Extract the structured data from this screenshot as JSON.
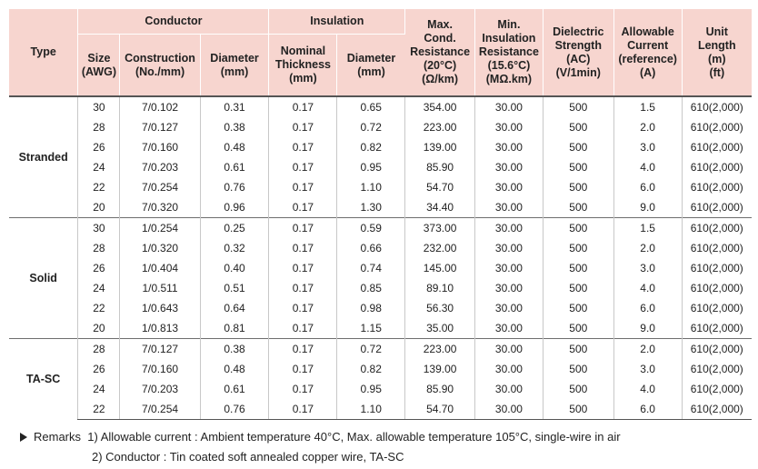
{
  "headers": {
    "type": "Type",
    "conductor": "Conductor",
    "insulation": "Insulation",
    "size": [
      "Size",
      "(AWG)"
    ],
    "construction": [
      "Construction",
      "(No./mm)"
    ],
    "cond_diameter": [
      "Diameter",
      "(mm)"
    ],
    "nominal_thickness": [
      "Nominal",
      "Thickness",
      "(mm)"
    ],
    "ins_diameter": [
      "Diameter",
      "(mm)"
    ],
    "max_resistance": [
      "Max.",
      "Cond.",
      "Resistance",
      "(20°C)",
      "(Ω/km)"
    ],
    "min_resistance": [
      "Min.",
      "Insulation",
      "Resistance",
      "(15.6°C)",
      "(MΩ.km)"
    ],
    "dielectric": [
      "Dielectric",
      "Strength",
      "(AC)",
      "(V/1min)"
    ],
    "allowable_current": [
      "Allowable",
      "Current",
      "(reference)",
      "(A)"
    ],
    "unit_length": [
      "Unit",
      "Length",
      "(m)",
      "(ft)"
    ]
  },
  "groups": [
    {
      "type": "Stranded",
      "rows": [
        [
          "30",
          "7/0.102",
          "0.31",
          "0.17",
          "0.65",
          "354.00",
          "30.00",
          "500",
          "1.5",
          "610(2,000)"
        ],
        [
          "28",
          "7/0.127",
          "0.38",
          "0.17",
          "0.72",
          "223.00",
          "30.00",
          "500",
          "2.0",
          "610(2,000)"
        ],
        [
          "26",
          "7/0.160",
          "0.48",
          "0.17",
          "0.82",
          "139.00",
          "30.00",
          "500",
          "3.0",
          "610(2,000)"
        ],
        [
          "24",
          "7/0.203",
          "0.61",
          "0.17",
          "0.95",
          "85.90",
          "30.00",
          "500",
          "4.0",
          "610(2,000)"
        ],
        [
          "22",
          "7/0.254",
          "0.76",
          "0.17",
          "1.10",
          "54.70",
          "30.00",
          "500",
          "6.0",
          "610(2,000)"
        ],
        [
          "20",
          "7/0.320",
          "0.96",
          "0.17",
          "1.30",
          "34.40",
          "30.00",
          "500",
          "9.0",
          "610(2,000)"
        ]
      ]
    },
    {
      "type": "Solid",
      "rows": [
        [
          "30",
          "1/0.254",
          "0.25",
          "0.17",
          "0.59",
          "373.00",
          "30.00",
          "500",
          "1.5",
          "610(2,000)"
        ],
        [
          "28",
          "1/0.320",
          "0.32",
          "0.17",
          "0.66",
          "232.00",
          "30.00",
          "500",
          "2.0",
          "610(2,000)"
        ],
        [
          "26",
          "1/0.404",
          "0.40",
          "0.17",
          "0.74",
          "145.00",
          "30.00",
          "500",
          "3.0",
          "610(2,000)"
        ],
        [
          "24",
          "1/0.511",
          "0.51",
          "0.17",
          "0.85",
          "89.10",
          "30.00",
          "500",
          "4.0",
          "610(2,000)"
        ],
        [
          "22",
          "1/0.643",
          "0.64",
          "0.17",
          "0.98",
          "56.30",
          "30.00",
          "500",
          "6.0",
          "610(2,000)"
        ],
        [
          "20",
          "1/0.813",
          "0.81",
          "0.17",
          "1.15",
          "35.00",
          "30.00",
          "500",
          "9.0",
          "610(2,000)"
        ]
      ]
    },
    {
      "type": "TA-SC",
      "rows": [
        [
          "28",
          "7/0.127",
          "0.38",
          "0.17",
          "0.72",
          "223.00",
          "30.00",
          "500",
          "2.0",
          "610(2,000)"
        ],
        [
          "26",
          "7/0.160",
          "0.48",
          "0.17",
          "0.82",
          "139.00",
          "30.00",
          "500",
          "3.0",
          "610(2,000)"
        ],
        [
          "24",
          "7/0.203",
          "0.61",
          "0.17",
          "0.95",
          "85.90",
          "30.00",
          "500",
          "4.0",
          "610(2,000)"
        ],
        [
          "22",
          "7/0.254",
          "0.76",
          "0.17",
          "1.10",
          "54.70",
          "30.00",
          "500",
          "6.0",
          "610(2,000)"
        ]
      ]
    }
  ],
  "remarks": {
    "label": "Remarks",
    "note1": "1) Allowable current : Ambient temperature 40°C, Max. allowable temperature 105°C, single-wire in air",
    "note2": "2) Conductor : Tin coated soft annealed copper wire, TA-SC"
  },
  "colors": {
    "header_bg": "#f7d5cf",
    "text": "#222222"
  }
}
